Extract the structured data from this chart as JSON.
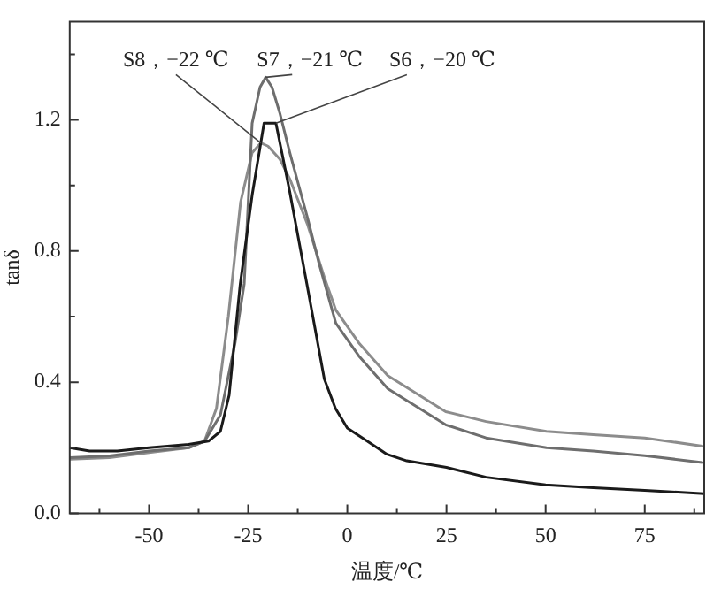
{
  "chart_data": {
    "type": "line",
    "xlabel": "温度/℃",
    "ylabel": "tanδ",
    "xlim": [
      -70,
      90
    ],
    "ylim": [
      0,
      1.5
    ],
    "xticks": [
      {
        "value": -62.5,
        "label": null
      },
      -50,
      {
        "value": -37.5,
        "label": null
      },
      -25,
      {
        "value": -12.5,
        "label": null
      },
      0,
      {
        "value": 12.5,
        "label": null
      },
      25,
      {
        "value": 37.5,
        "label": null
      },
      50,
      {
        "value": 62.5,
        "label": null
      },
      75,
      {
        "value": 87.5,
        "label": null
      }
    ],
    "yticks": [
      {
        "value": 0,
        "label": "0.0"
      },
      {
        "value": 0.2,
        "label": null
      },
      0.4,
      {
        "value": 0.6,
        "label": null
      },
      0.8,
      {
        "value": 1,
        "label": null
      },
      1.2,
      {
        "value": 1.4,
        "label": null
      }
    ],
    "grid": false,
    "legend": false,
    "marker": "none",
    "line_style": "solid",
    "series": [
      {
        "color": "#1a1a1a",
        "x": [
          -70,
          -65,
          -58,
          -50,
          -40,
          -35,
          -32,
          -29.8,
          -27,
          -24,
          -21,
          -18,
          -14.5,
          -10.2,
          -5.8,
          -3,
          0,
          5,
          10,
          15,
          25,
          35,
          50,
          62,
          75,
          90
        ],
        "values": [
          0.2,
          0.19,
          0.19,
          0.2,
          0.21,
          0.22,
          0.25,
          0.36,
          0.7,
          0.97,
          1.19,
          1.19,
          0.98,
          0.7,
          0.41,
          0.32,
          0.26,
          0.22,
          0.18,
          0.16,
          0.14,
          0.11,
          0.087,
          0.078,
          0.07,
          0.06
        ]
      },
      {
        "color": "#6e6e6e",
        "x": [
          -70,
          -60,
          -50,
          -40,
          -36,
          -32,
          -28.3,
          -26,
          -24,
          -22,
          -20.6,
          -19,
          -17,
          -14.5,
          -10,
          -7.3,
          -2.9,
          2.9,
          10.2,
          24.8,
          35,
          50.2,
          62,
          75,
          89.5
        ],
        "values": [
          0.17,
          0.175,
          0.19,
          0.2,
          0.22,
          0.3,
          0.52,
          0.7,
          1.19,
          1.3,
          1.33,
          1.3,
          1.22,
          1.1,
          0.9,
          0.77,
          0.58,
          0.48,
          0.38,
          0.27,
          0.23,
          0.2,
          0.19,
          0.176,
          0.155
        ]
      },
      {
        "color": "#8c8c8c",
        "x": [
          -70,
          -60,
          -50,
          -40,
          -36,
          -33,
          -30,
          -26.9,
          -24,
          -21.8,
          -20,
          -17,
          -14.5,
          -10,
          -5.8,
          -2.9,
          2.9,
          10.2,
          24.8,
          35,
          50.2,
          62,
          75,
          89.5
        ],
        "values": [
          0.165,
          0.17,
          0.185,
          0.2,
          0.22,
          0.32,
          0.6,
          0.95,
          1.1,
          1.13,
          1.12,
          1.08,
          1.02,
          0.88,
          0.72,
          0.62,
          0.52,
          0.42,
          0.31,
          0.28,
          0.25,
          0.24,
          0.23,
          0.205
        ]
      }
    ],
    "annotations": [
      {
        "text": "S8，−22 ℃",
        "x": -21.8,
        "y": 1.13
      },
      {
        "text": "S7，−21 ℃",
        "x": -20.6,
        "y": 1.33
      },
      {
        "text": "S6，−20 ℃",
        "x": -18,
        "y": 1.19
      }
    ]
  }
}
